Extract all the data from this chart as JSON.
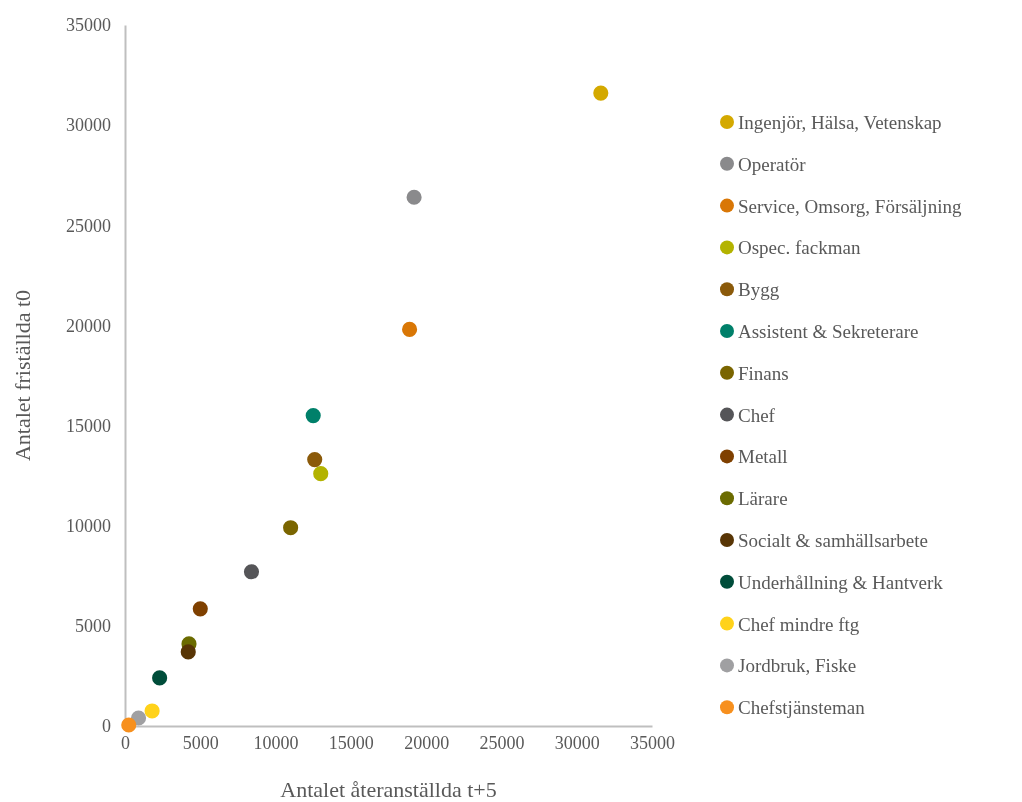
{
  "chart_data": {
    "type": "scatter",
    "xlabel": "Antalet återanställda t+5",
    "ylabel": "Antalet friställda t0",
    "xlim": [
      0,
      35000
    ],
    "xticks": [
      0,
      5000,
      10000,
      15000,
      20000,
      25000,
      30000,
      35000
    ],
    "ylim": [
      0,
      35000
    ],
    "yticks": [
      0,
      5000,
      10000,
      15000,
      20000,
      25000,
      30000,
      35000
    ],
    "grid": false,
    "legend": "right",
    "marker": "circle",
    "series": [
      {
        "name": "Ingenjör, Hälsa, Vetenskap",
        "color": "#d4a900",
        "x": [
          31600
        ],
        "values": [
          31600
        ]
      },
      {
        "name": "Operatör",
        "color": "#8a8a8c",
        "x": [
          19200
        ],
        "values": [
          26400
        ]
      },
      {
        "name": "Service, Omsorg, Försäljning",
        "color": "#d97706",
        "x": [
          18900
        ],
        "values": [
          19800
        ]
      },
      {
        "name": "Ospec. fackman",
        "color": "#b3b300",
        "x": [
          13000
        ],
        "values": [
          12600
        ]
      },
      {
        "name": "Bygg",
        "color": "#8b5a0a",
        "x": [
          12600
        ],
        "values": [
          13300
        ]
      },
      {
        "name": "Assistent & Sekreterare",
        "color": "#00806a",
        "x": [
          12500
        ],
        "values": [
          15500
        ]
      },
      {
        "name": "Finans",
        "color": "#7a6500",
        "x": [
          11000
        ],
        "values": [
          9900
        ]
      },
      {
        "name": "Chef",
        "color": "#555558",
        "x": [
          8400
        ],
        "values": [
          7700
        ]
      },
      {
        "name": "Metall",
        "color": "#7f4000",
        "x": [
          5000
        ],
        "values": [
          5850
        ]
      },
      {
        "name": "Lärare",
        "color": "#6b6b00",
        "x": [
          4250
        ],
        "values": [
          4100
        ]
      },
      {
        "name": "Socialt & samhällsarbete",
        "color": "#583505",
        "x": [
          4200
        ],
        "values": [
          3700
        ]
      },
      {
        "name": "Underhållning & Hantverk",
        "color": "#004d3a",
        "x": [
          2300
        ],
        "values": [
          2400
        ]
      },
      {
        "name": "Chef mindre ftg",
        "color": "#ffd21a",
        "x": [
          1800
        ],
        "values": [
          750
        ]
      },
      {
        "name": "Jordbruk, Fiske",
        "color": "#a0a0a2",
        "x": [
          900
        ],
        "values": [
          400
        ]
      },
      {
        "name": "Chefstjänsteman",
        "color": "#f7901e",
        "x": [
          250
        ],
        "values": [
          50
        ]
      }
    ]
  }
}
